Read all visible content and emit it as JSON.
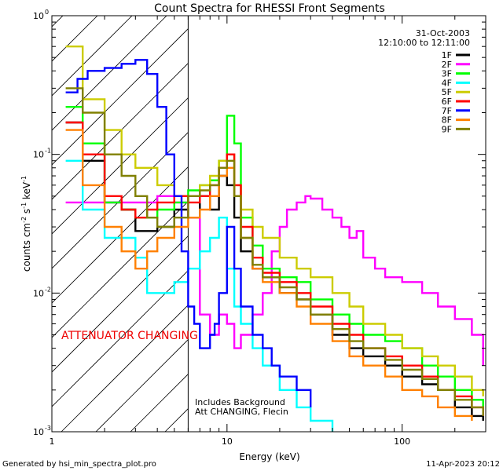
{
  "chart_data": {
    "type": "line",
    "title": "Count Spectra for RHESSI Front Segments",
    "xlabel": "Energy (keV)",
    "ylabel_main": "counts cm",
    "ylabel_units": "counts cm-2 s-1 keV-1",
    "x_scale": "log",
    "y_scale": "log",
    "xlim": [
      1,
      300
    ],
    "ylim": [
      0.001,
      1
    ],
    "x_ticks": [
      {
        "value": 1,
        "label": "1"
      },
      {
        "value": 10,
        "label": "10"
      },
      {
        "value": 100,
        "label": "100"
      }
    ],
    "y_ticks": [
      {
        "value": 0.001,
        "label": "10",
        "exp": "-3"
      },
      {
        "value": 0.01,
        "label": "10",
        "exp": "-2"
      },
      {
        "value": 0.1,
        "label": "10",
        "exp": "-1"
      },
      {
        "value": 1,
        "label": "10",
        "exp": "0"
      }
    ],
    "date": "31-Oct-2003",
    "time_range": "12:10:00 to 12:11:00",
    "attenuator_label": "ATTENUATOR CHANGING",
    "attenuator_range_kev": [
      1,
      6
    ],
    "notes": [
      "Includes Background",
      "Att CHANGING, Flecin"
    ],
    "footer_left": "Generated by hsi_min_spectra_plot.pro",
    "footer_right": "11-Apr-2023 20:12",
    "series": [
      {
        "name": "1F",
        "color": "#000000",
        "x": [
          1.2,
          1.5,
          2,
          2.5,
          3,
          3.5,
          4,
          5,
          6,
          7,
          8,
          9,
          10,
          11,
          12,
          14,
          16,
          20,
          25,
          30,
          40,
          50,
          60,
          80,
          100,
          130,
          160,
          200,
          250,
          290
        ],
        "y": [
          0.17,
          0.09,
          0.045,
          0.04,
          0.028,
          0.028,
          0.03,
          0.04,
          0.035,
          0.05,
          0.04,
          0.07,
          0.06,
          0.035,
          0.02,
          0.015,
          0.013,
          0.01,
          0.009,
          0.007,
          0.005,
          0.004,
          0.0035,
          0.003,
          0.0025,
          0.0022,
          0.002,
          0.0015,
          0.0013,
          0.0012
        ]
      },
      {
        "name": "2F",
        "color": "#ff00ff",
        "x": [
          1.2,
          2,
          3,
          4,
          5,
          6,
          7,
          8,
          9,
          10,
          11,
          12,
          14,
          16,
          18,
          20,
          22,
          25,
          28,
          30,
          35,
          40,
          45,
          50,
          55,
          60,
          70,
          80,
          100,
          130,
          160,
          200,
          250,
          290
        ],
        "y": [
          0.045,
          0.045,
          0.045,
          0.05,
          0.045,
          0.035,
          0.007,
          0.005,
          0.007,
          0.006,
          0.004,
          0.005,
          0.007,
          0.01,
          0.02,
          0.03,
          0.04,
          0.045,
          0.05,
          0.048,
          0.04,
          0.035,
          0.03,
          0.025,
          0.028,
          0.018,
          0.015,
          0.013,
          0.012,
          0.01,
          0.008,
          0.0065,
          0.005,
          0.003
        ]
      },
      {
        "name": "3F",
        "color": "#00ff00",
        "x": [
          1.2,
          1.5,
          2,
          2.5,
          3,
          3.5,
          4,
          5,
          6,
          7,
          8,
          9,
          10,
          11,
          12,
          14,
          16,
          20,
          25,
          30,
          40,
          50,
          60,
          80,
          100,
          130,
          160,
          200,
          250,
          290
        ],
        "y": [
          0.22,
          0.12,
          0.045,
          0.04,
          0.035,
          0.035,
          0.04,
          0.045,
          0.055,
          0.06,
          0.065,
          0.09,
          0.19,
          0.12,
          0.035,
          0.022,
          0.015,
          0.013,
          0.012,
          0.009,
          0.007,
          0.006,
          0.005,
          0.0045,
          0.004,
          0.003,
          0.0025,
          0.002,
          0.0017,
          0.0015
        ]
      },
      {
        "name": "4F",
        "color": "#00ffff",
        "x": [
          1.2,
          1.5,
          2,
          2.5,
          3,
          3.5,
          4,
          5,
          6,
          7,
          8,
          9,
          10,
          11,
          12,
          14,
          16,
          20,
          25,
          30,
          40
        ],
        "y": [
          0.09,
          0.04,
          0.025,
          0.025,
          0.018,
          0.01,
          0.01,
          0.012,
          0.015,
          0.02,
          0.025,
          0.035,
          0.015,
          0.008,
          0.006,
          0.004,
          0.003,
          0.002,
          0.0015,
          0.0012,
          0.001
        ]
      },
      {
        "name": "5F",
        "color": "#cccc00",
        "x": [
          1.2,
          1.5,
          2,
          2.5,
          3,
          3.5,
          4,
          5,
          6,
          7,
          8,
          9,
          10,
          11,
          12,
          14,
          16,
          20,
          25,
          30,
          40,
          50,
          60,
          80,
          100,
          130,
          160,
          200,
          250,
          290
        ],
        "y": [
          0.6,
          0.25,
          0.15,
          0.1,
          0.08,
          0.08,
          0.06,
          0.05,
          0.05,
          0.06,
          0.07,
          0.09,
          0.1,
          0.06,
          0.04,
          0.03,
          0.025,
          0.018,
          0.015,
          0.013,
          0.01,
          0.008,
          0.006,
          0.005,
          0.004,
          0.0035,
          0.003,
          0.0025,
          0.002,
          0.0018
        ]
      },
      {
        "name": "6F",
        "color": "#ff0000",
        "x": [
          1.2,
          1.5,
          2,
          2.5,
          3,
          3.5,
          4,
          5,
          6,
          7,
          8,
          9,
          10,
          11,
          12,
          14,
          16,
          20,
          25,
          30,
          40,
          50,
          60,
          80,
          100,
          130,
          160,
          200,
          250,
          290
        ],
        "y": [
          0.17,
          0.1,
          0.05,
          0.04,
          0.035,
          0.04,
          0.045,
          0.05,
          0.045,
          0.05,
          0.06,
          0.08,
          0.1,
          0.06,
          0.03,
          0.018,
          0.014,
          0.012,
          0.01,
          0.008,
          0.006,
          0.005,
          0.004,
          0.0035,
          0.003,
          0.0025,
          0.002,
          0.0018,
          0.0015,
          0.0013
        ]
      },
      {
        "name": "7F",
        "color": "#0000ff",
        "x": [
          1.2,
          1.4,
          1.6,
          2,
          2.5,
          3,
          3.5,
          4,
          4.5,
          5,
          5.5,
          6,
          6.5,
          7,
          7.5,
          8,
          8.5,
          9,
          10,
          11,
          12,
          14,
          16,
          18,
          20,
          25,
          30
        ],
        "y": [
          0.28,
          0.35,
          0.4,
          0.42,
          0.45,
          0.48,
          0.38,
          0.22,
          0.1,
          0.05,
          0.02,
          0.008,
          0.006,
          0.004,
          0.004,
          0.005,
          0.006,
          0.01,
          0.03,
          0.015,
          0.008,
          0.005,
          0.004,
          0.003,
          0.0025,
          0.002,
          0.0015
        ]
      },
      {
        "name": "8F",
        "color": "#ff8000",
        "x": [
          1.2,
          1.5,
          2,
          2.5,
          3,
          3.5,
          4,
          5,
          6,
          7,
          8,
          9,
          10,
          11,
          12,
          14,
          16,
          20,
          25,
          30,
          40,
          50,
          60,
          80,
          100,
          130,
          160,
          200,
          250
        ],
        "y": [
          0.15,
          0.06,
          0.03,
          0.02,
          0.015,
          0.02,
          0.025,
          0.03,
          0.035,
          0.04,
          0.05,
          0.07,
          0.08,
          0.05,
          0.025,
          0.015,
          0.012,
          0.01,
          0.008,
          0.006,
          0.0045,
          0.0035,
          0.003,
          0.0025,
          0.002,
          0.0018,
          0.0015,
          0.0013,
          0.0012
        ]
      },
      {
        "name": "9F",
        "color": "#808000",
        "x": [
          1.2,
          1.5,
          2,
          2.5,
          3,
          3.5,
          4,
          5,
          6,
          7,
          8,
          9,
          10,
          11,
          12,
          14,
          16,
          20,
          25,
          30,
          40,
          50,
          60,
          80,
          100,
          130,
          160,
          200,
          250,
          290
        ],
        "y": [
          0.3,
          0.2,
          0.1,
          0.07,
          0.05,
          0.035,
          0.03,
          0.035,
          0.05,
          0.055,
          0.06,
          0.08,
          0.09,
          0.05,
          0.025,
          0.016,
          0.013,
          0.011,
          0.009,
          0.007,
          0.0055,
          0.0045,
          0.004,
          0.0033,
          0.0028,
          0.0024,
          0.002,
          0.0017,
          0.0015,
          0.0013
        ]
      }
    ]
  }
}
